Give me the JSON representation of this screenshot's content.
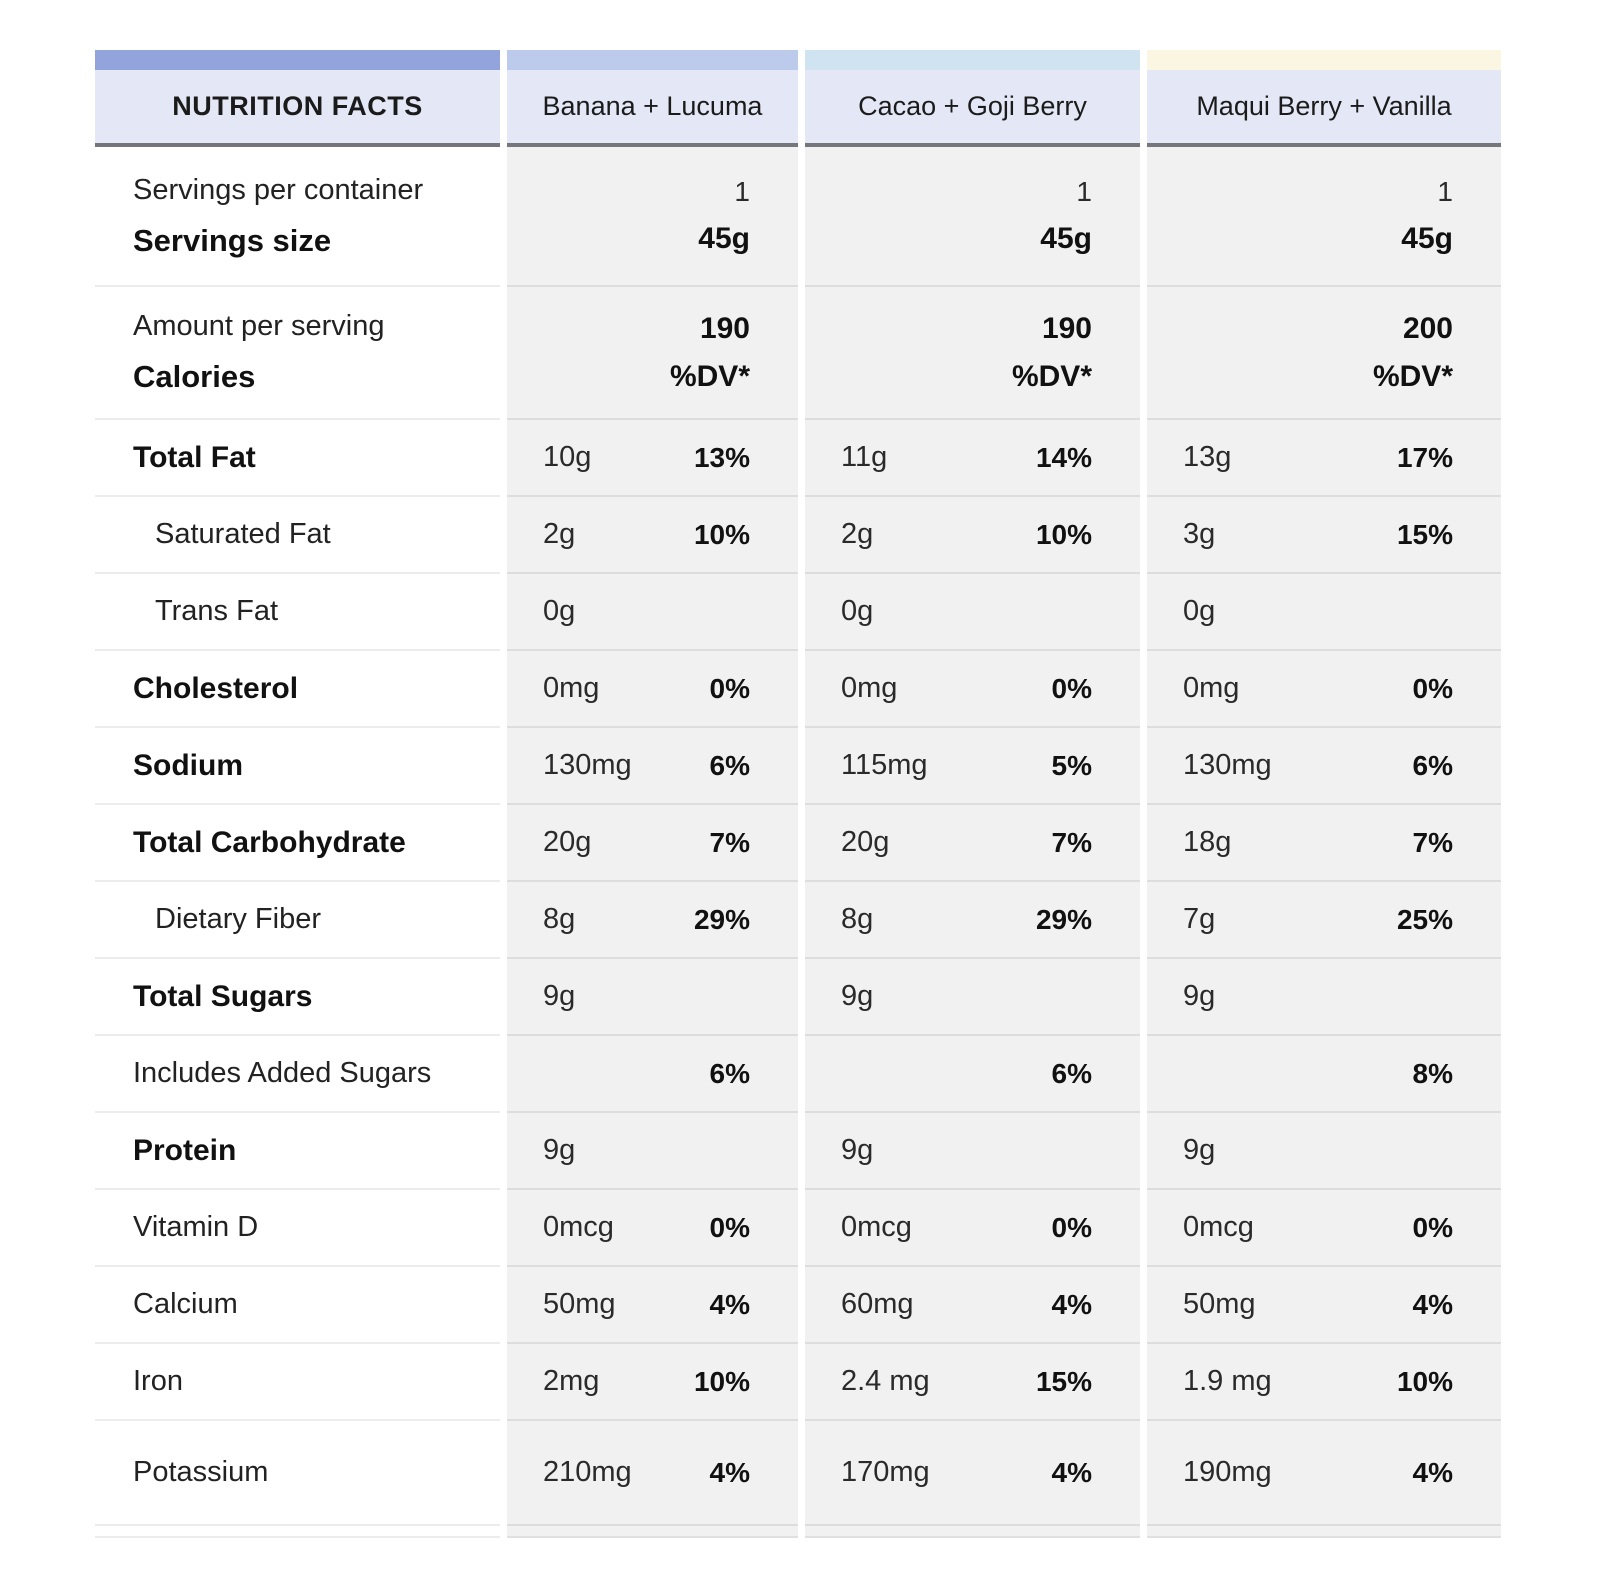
{
  "table": {
    "header": {
      "label": "NUTRITION FACTS",
      "columns": [
        "Banana + Lucuma",
        "Cacao + Goji Berry",
        "Maqui Berry + Vanilla"
      ]
    },
    "colors": {
      "label_column_strip": "#93a4dd",
      "banana_strip": "#bccaec",
      "cacao_strip": "#cfe3f1",
      "maqui_strip": "#fbf6e1",
      "header_bg": "#e4e8f6",
      "data_cell_bg": "#f1f1f1"
    },
    "servings_row": {
      "label_line1": "Servings per container",
      "label_line2": "Servings size",
      "values": [
        {
          "line1": "1",
          "line2": "45g"
        },
        {
          "line1": "1",
          "line2": "45g"
        },
        {
          "line1": "1",
          "line2": "45g"
        }
      ]
    },
    "calories_row": {
      "label_line1": "Amount per serving",
      "label_line2": "Calories",
      "values": [
        {
          "line1": "190",
          "line2": "%DV*"
        },
        {
          "line1": "190",
          "line2": "%DV*"
        },
        {
          "line1": "200",
          "line2": "%DV*"
        }
      ]
    },
    "rows": [
      {
        "label": "Total Fat",
        "bold": true,
        "indent": false,
        "tall": false,
        "cells": [
          {
            "amount": "10g",
            "dv": "13%"
          },
          {
            "amount": "11g",
            "dv": "14%"
          },
          {
            "amount": "13g",
            "dv": "17%"
          }
        ]
      },
      {
        "label": "Saturated Fat",
        "bold": false,
        "indent": true,
        "tall": false,
        "cells": [
          {
            "amount": "2g",
            "dv": "10%"
          },
          {
            "amount": "2g",
            "dv": "10%"
          },
          {
            "amount": "3g",
            "dv": "15%"
          }
        ]
      },
      {
        "label": "Trans Fat",
        "bold": false,
        "indent": true,
        "tall": false,
        "cells": [
          {
            "amount": "0g",
            "dv": ""
          },
          {
            "amount": "0g",
            "dv": ""
          },
          {
            "amount": "0g",
            "dv": ""
          }
        ]
      },
      {
        "label": "Cholesterol",
        "bold": true,
        "indent": false,
        "tall": false,
        "cells": [
          {
            "amount": "0mg",
            "dv": "0%"
          },
          {
            "amount": "0mg",
            "dv": "0%"
          },
          {
            "amount": "0mg",
            "dv": "0%"
          }
        ]
      },
      {
        "label": "Sodium",
        "bold": true,
        "indent": false,
        "tall": false,
        "cells": [
          {
            "amount": "130mg",
            "dv": "6%"
          },
          {
            "amount": "115mg",
            "dv": "5%"
          },
          {
            "amount": "130mg",
            "dv": "6%"
          }
        ]
      },
      {
        "label": "Total Carbohydrate",
        "bold": true,
        "indent": false,
        "tall": false,
        "cells": [
          {
            "amount": "20g",
            "dv": "7%"
          },
          {
            "amount": "20g",
            "dv": "7%"
          },
          {
            "amount": "18g",
            "dv": "7%"
          }
        ]
      },
      {
        "label": "Dietary Fiber",
        "bold": false,
        "indent": true,
        "tall": false,
        "cells": [
          {
            "amount": "8g",
            "dv": "29%"
          },
          {
            "amount": "8g",
            "dv": "29%"
          },
          {
            "amount": "7g",
            "dv": "25%"
          }
        ]
      },
      {
        "label": "Total Sugars",
        "bold": true,
        "indent": false,
        "tall": false,
        "cells": [
          {
            "amount": "9g",
            "dv": ""
          },
          {
            "amount": "9g",
            "dv": ""
          },
          {
            "amount": "9g",
            "dv": ""
          }
        ]
      },
      {
        "label": "Includes Added Sugars",
        "bold": false,
        "indent": false,
        "tall": false,
        "cells": [
          {
            "amount": "",
            "dv": "6%"
          },
          {
            "amount": "",
            "dv": "6%"
          },
          {
            "amount": "",
            "dv": "8%"
          }
        ]
      },
      {
        "label": "Protein",
        "bold": true,
        "indent": false,
        "tall": false,
        "cells": [
          {
            "amount": "9g",
            "dv": ""
          },
          {
            "amount": "9g",
            "dv": ""
          },
          {
            "amount": "9g",
            "dv": ""
          }
        ]
      },
      {
        "label": "Vitamin D",
        "bold": false,
        "indent": false,
        "tall": false,
        "cells": [
          {
            "amount": "0mcg",
            "dv": "0%"
          },
          {
            "amount": "0mcg",
            "dv": "0%"
          },
          {
            "amount": "0mcg",
            "dv": "0%"
          }
        ]
      },
      {
        "label": "Calcium",
        "bold": false,
        "indent": false,
        "tall": false,
        "cells": [
          {
            "amount": "50mg",
            "dv": "4%"
          },
          {
            "amount": "60mg",
            "dv": "4%"
          },
          {
            "amount": "50mg",
            "dv": "4%"
          }
        ]
      },
      {
        "label": "Iron",
        "bold": false,
        "indent": false,
        "tall": false,
        "cells": [
          {
            "amount": "2mg",
            "dv": "10%"
          },
          {
            "amount": "2.4 mg",
            "dv": "15%"
          },
          {
            "amount": "1.9 mg",
            "dv": "10%"
          }
        ]
      },
      {
        "label": "Potassium",
        "bold": false,
        "indent": false,
        "tall": true,
        "cells": [
          {
            "amount": "210mg",
            "dv": "4%"
          },
          {
            "amount": "170mg",
            "dv": "4%"
          },
          {
            "amount": "190mg",
            "dv": "4%"
          }
        ]
      }
    ]
  }
}
